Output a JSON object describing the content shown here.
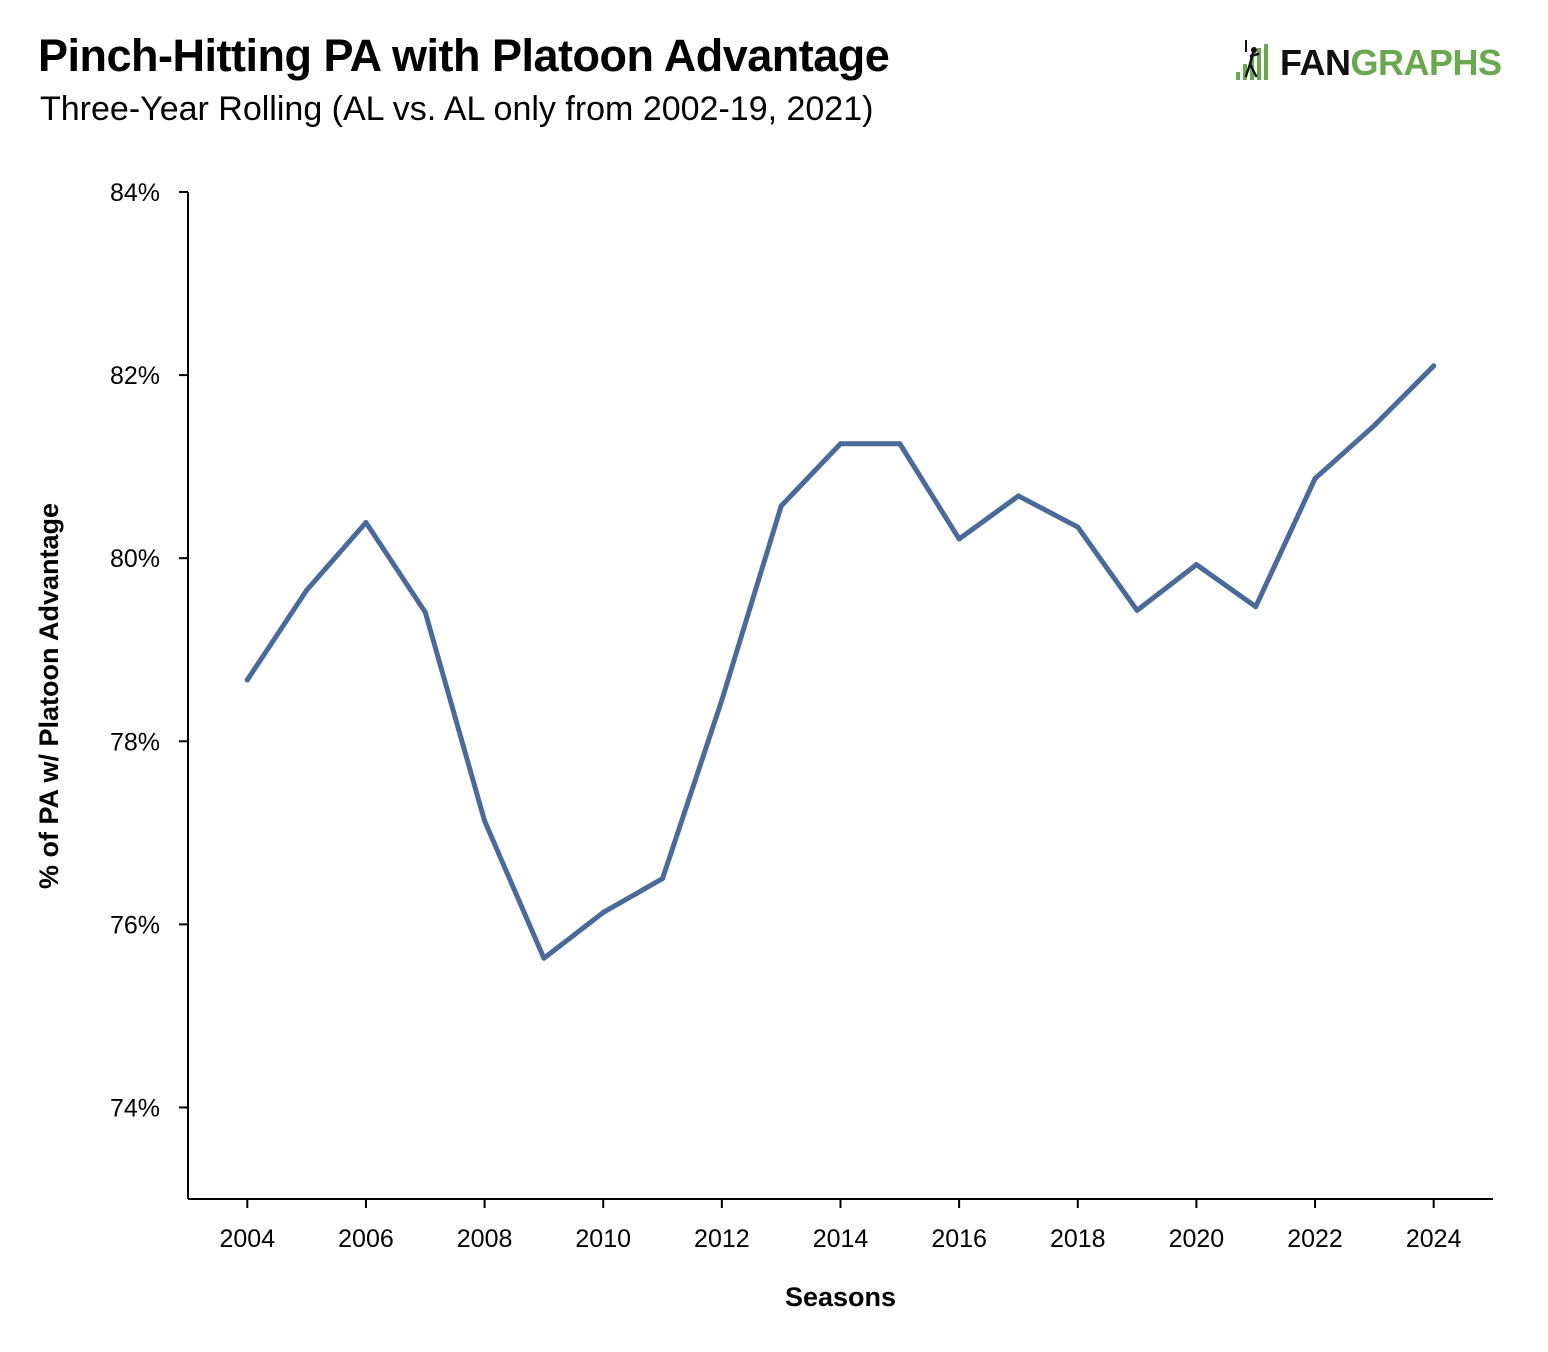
{
  "title": "Pinch-Hitting PA with Platoon Advantage",
  "subtitle": "Three-Year Rolling (AL vs. AL only from 2002-19, 2021)",
  "logo": {
    "part1": "FAN",
    "part2": "GRAPHS",
    "icon": "batter-icon"
  },
  "colors": {
    "line": "#4a6a99",
    "logo_green": "#6aa84f",
    "axis": "#000000"
  },
  "chart_data": {
    "type": "line",
    "xlabel": "Seasons",
    "ylabel": "% of PA w/ Platoon Advantage",
    "xlim": [
      2003,
      2025
    ],
    "ylim": [
      73,
      84
    ],
    "x_ticks": [
      2004,
      2006,
      2008,
      2010,
      2012,
      2014,
      2016,
      2018,
      2020,
      2022,
      2024
    ],
    "y_ticks": [
      74,
      76,
      78,
      80,
      82,
      84
    ],
    "y_tick_labels": [
      "74%",
      "76%",
      "78%",
      "80%",
      "82%",
      "84%"
    ],
    "grid": false,
    "series": [
      {
        "x": [
          2004,
          2005,
          2006,
          2007,
          2008,
          2009,
          2010,
          2011,
          2012,
          2013,
          2014,
          2015,
          2016,
          2017,
          2018,
          2019,
          2020,
          2021,
          2022,
          2023,
          2024
        ],
        "values": [
          78.67,
          79.65,
          80.39,
          79.41,
          77.13,
          75.63,
          76.13,
          76.5,
          78.45,
          80.57,
          81.25,
          81.25,
          80.21,
          80.68,
          80.34,
          79.43,
          79.93,
          79.47,
          80.87,
          81.45,
          82.1
        ]
      }
    ]
  }
}
